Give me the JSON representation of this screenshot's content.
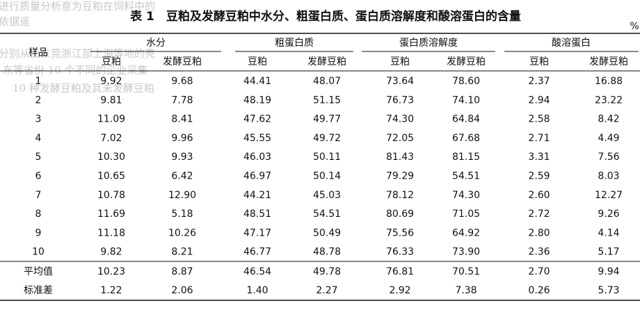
{
  "watermark": [
    "进行质量分析意为豆粕在饲料中的",
    "依据遥",
    "分别从山东莞浙江部上海等地的亮",
    "东等省份 10 个不同的企业采集",
    "10 种发酵豆粕及其未发酵豆粕"
  ],
  "title": "表 1　豆粕及发酵豆粕中水分、粗蛋白质、蛋白质溶解度和酸溶蛋白的含量",
  "unit": "%",
  "table": {
    "row_header": "样品",
    "groups": [
      "水分",
      "粗蛋白质",
      "蛋白质溶解度",
      "酸溶蛋白"
    ],
    "subheaders": [
      "豆粕",
      "发酵豆粕",
      "豆粕",
      "发酵豆粕",
      "豆粕",
      "发酵豆粕",
      "豆粕",
      "发酵豆粕"
    ],
    "rows": [
      [
        "1",
        "9.92",
        "9.68",
        "44.41",
        "48.07",
        "73.64",
        "78.60",
        "2.37",
        "16.88"
      ],
      [
        "2",
        "9.81",
        "7.78",
        "48.19",
        "51.15",
        "76.73",
        "74.10",
        "2.94",
        "23.22"
      ],
      [
        "3",
        "11.09",
        "8.41",
        "47.62",
        "49.77",
        "74.30",
        "64.84",
        "2.58",
        "8.42"
      ],
      [
        "4",
        "7.02",
        "9.96",
        "45.55",
        "49.72",
        "72.05",
        "67.68",
        "2.71",
        "4.49"
      ],
      [
        "5",
        "10.30",
        "9.93",
        "46.03",
        "50.11",
        "81.43",
        "81.15",
        "3.31",
        "7.56"
      ],
      [
        "6",
        "10.65",
        "6.42",
        "46.97",
        "50.14",
        "79.29",
        "54.51",
        "2.59",
        "8.03"
      ],
      [
        "7",
        "10.78",
        "12.90",
        "44.21",
        "45.03",
        "78.12",
        "74.30",
        "2.60",
        "12.27"
      ],
      [
        "8",
        "11.69",
        "5.18",
        "48.51",
        "54.51",
        "80.69",
        "71.05",
        "2.72",
        "9.26"
      ],
      [
        "9",
        "11.18",
        "10.26",
        "47.17",
        "50.49",
        "75.56",
        "64.92",
        "2.80",
        "4.14"
      ],
      [
        "10",
        "9.82",
        "8.21",
        "46.77",
        "48.78",
        "76.33",
        "73.90",
        "2.36",
        "5.17"
      ]
    ],
    "summary": [
      [
        "平均值",
        "10.23",
        "8.87",
        "46.54",
        "49.78",
        "76.81",
        "70.51",
        "2.70",
        "9.94"
      ],
      [
        "标准差",
        "1.22",
        "2.06",
        "1.40",
        "2.27",
        "2.92",
        "7.38",
        "0.26",
        "5.73"
      ]
    ]
  }
}
